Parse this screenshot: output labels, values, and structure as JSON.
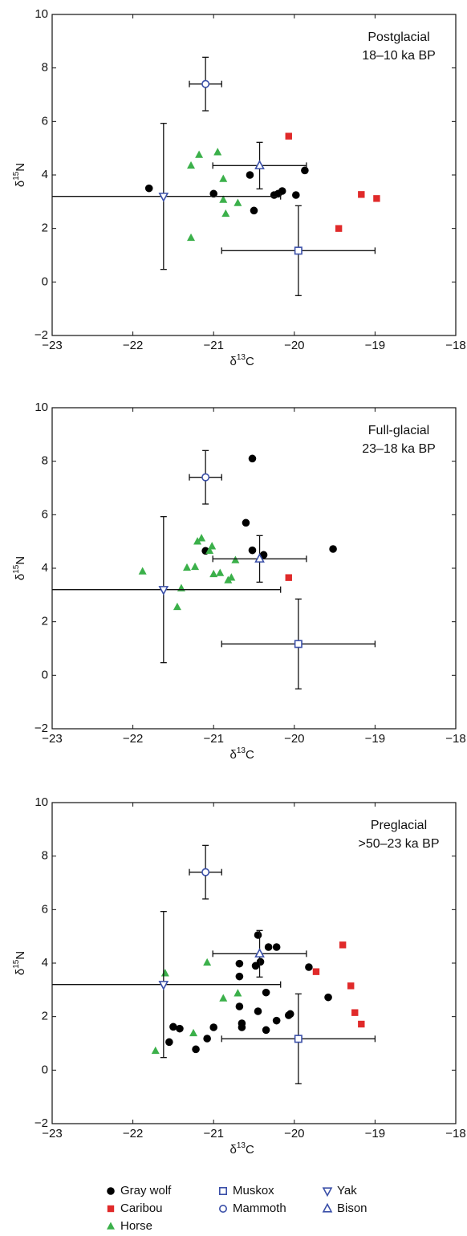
{
  "chart_data": [
    {
      "type": "scatter",
      "annotation": [
        "Postglacial",
        "18–10 ka BP"
      ],
      "xlabel": [
        "δ",
        "13",
        "C"
      ],
      "ylabel": [
        "δ",
        "15",
        "N"
      ],
      "xlim": [
        -23,
        -18
      ],
      "ylim": [
        -2,
        10
      ],
      "xticks": [
        {
          "value": -23,
          "label": "−23"
        },
        {
          "value": -22,
          "label": "−22"
        },
        {
          "value": -21,
          "label": "−21"
        },
        {
          "value": -20,
          "label": "−20"
        },
        {
          "value": -19,
          "label": "−19"
        },
        {
          "value": -18,
          "label": "−18"
        }
      ],
      "yticks": [
        {
          "value": -2,
          "label": "−2"
        },
        0,
        2,
        4,
        6,
        8,
        10
      ],
      "series": [
        {
          "name": "Gray wolf",
          "color": "#000000",
          "marker": "circle",
          "filled": true,
          "x": [
            -21.8,
            -21.0,
            -20.55,
            -20.5,
            -20.25,
            -20.2,
            -20.15,
            -19.98,
            -19.87
          ],
          "y": [
            3.5,
            3.3,
            4.0,
            2.67,
            3.25,
            3.3,
            3.4,
            3.25,
            4.17
          ]
        },
        {
          "name": "Caribou",
          "color": "#e02a2a",
          "marker": "square",
          "filled": true,
          "x": [
            -20.07,
            -19.45,
            -19.17,
            -18.98
          ],
          "y": [
            5.45,
            2.0,
            3.27,
            3.12
          ]
        },
        {
          "name": "Horse",
          "color": "#3bb04a",
          "marker": "triangle-up",
          "filled": true,
          "x": [
            -21.28,
            -21.18,
            -20.95,
            -20.88,
            -20.88,
            -20.85,
            -20.7,
            -21.28
          ],
          "y": [
            4.35,
            4.75,
            4.85,
            3.85,
            3.07,
            2.55,
            2.95,
            1.65
          ]
        },
        {
          "name": "Muskox",
          "color": "#3a4fa8",
          "marker": "square",
          "filled": false,
          "x": [
            -19.95
          ],
          "y": [
            1.17
          ],
          "xerr": [
            0.95
          ],
          "yerr": [
            1.68
          ]
        },
        {
          "name": "Mammoth",
          "color": "#3a4fa8",
          "marker": "circle",
          "filled": false,
          "x": [
            -21.1
          ],
          "y": [
            7.4
          ],
          "xerr": [
            0.2
          ],
          "yerr": [
            1.0
          ]
        },
        {
          "name": "Yak",
          "color": "#3a4fa8",
          "marker": "triangle-down",
          "filled": false,
          "x": [
            -21.62
          ],
          "y": [
            3.2
          ],
          "xerr": [
            1.45
          ],
          "yerr": [
            2.73
          ]
        },
        {
          "name": "Bison",
          "color": "#3a4fa8",
          "marker": "triangle-up",
          "filled": false,
          "x": [
            -20.43
          ],
          "y": [
            4.35
          ],
          "xerr": [
            0.58
          ],
          "yerr": [
            0.87
          ]
        }
      ]
    },
    {
      "type": "scatter",
      "annotation": [
        "Full-glacial",
        "23–18 ka BP"
      ],
      "xlabel": [
        "δ",
        "13",
        "C"
      ],
      "ylabel": [
        "δ",
        "15",
        "N"
      ],
      "xlim": [
        -23,
        -18
      ],
      "ylim": [
        -2,
        10
      ],
      "xticks": [
        {
          "value": -23,
          "label": "−23"
        },
        {
          "value": -22,
          "label": "−22"
        },
        {
          "value": -21,
          "label": "−21"
        },
        {
          "value": -20,
          "label": "−20"
        },
        {
          "value": -19,
          "label": "−19"
        },
        {
          "value": -18,
          "label": "−18"
        }
      ],
      "yticks": [
        {
          "value": -2,
          "label": "−2"
        },
        0,
        2,
        4,
        6,
        8,
        10
      ],
      "series": [
        {
          "name": "Gray wolf",
          "color": "#000000",
          "marker": "circle",
          "filled": true,
          "x": [
            -21.1,
            -20.52,
            -20.6,
            -20.52,
            -20.38,
            -19.52
          ],
          "y": [
            4.65,
            8.1,
            5.7,
            4.67,
            4.5,
            4.72
          ]
        },
        {
          "name": "Caribou",
          "color": "#e02a2a",
          "marker": "square",
          "filled": true,
          "x": [
            -20.07
          ],
          "y": [
            3.65
          ]
        },
        {
          "name": "Horse",
          "color": "#3bb04a",
          "marker": "triangle-up",
          "filled": true,
          "x": [
            -21.88,
            -21.45,
            -21.4,
            -21.33,
            -21.23,
            -21.2,
            -21.15,
            -21.05,
            -21.02,
            -21.0,
            -20.92,
            -20.82,
            -20.78,
            -20.73
          ],
          "y": [
            3.88,
            2.55,
            3.25,
            4.02,
            4.05,
            5.0,
            5.12,
            4.65,
            4.82,
            3.78,
            3.82,
            3.55,
            3.65,
            4.3
          ]
        },
        {
          "name": "Muskox",
          "color": "#3a4fa8",
          "marker": "square",
          "filled": false,
          "x": [
            -19.95
          ],
          "y": [
            1.17
          ],
          "xerr": [
            0.95
          ],
          "yerr": [
            1.68
          ]
        },
        {
          "name": "Mammoth",
          "color": "#3a4fa8",
          "marker": "circle",
          "filled": false,
          "x": [
            -21.1
          ],
          "y": [
            7.4
          ],
          "xerr": [
            0.2
          ],
          "yerr": [
            1.0
          ]
        },
        {
          "name": "Yak",
          "color": "#3a4fa8",
          "marker": "triangle-down",
          "filled": false,
          "x": [
            -21.62
          ],
          "y": [
            3.2
          ],
          "xerr": [
            1.45
          ],
          "yerr": [
            2.73
          ]
        },
        {
          "name": "Bison",
          "color": "#3a4fa8",
          "marker": "triangle-up",
          "filled": false,
          "x": [
            -20.43
          ],
          "y": [
            4.35
          ],
          "xerr": [
            0.58
          ],
          "yerr": [
            0.87
          ]
        }
      ]
    },
    {
      "type": "scatter",
      "annotation": [
        "Preglacial",
        ">50–23 ka BP"
      ],
      "xlabel": [
        "δ",
        "13",
        "C"
      ],
      "ylabel": [
        "δ",
        "15",
        "N"
      ],
      "xlim": [
        -23,
        -18
      ],
      "ylim": [
        -2,
        10
      ],
      "xticks": [
        {
          "value": -23,
          "label": "−23"
        },
        {
          "value": -22,
          "label": "−22"
        },
        {
          "value": -21,
          "label": "−21"
        },
        {
          "value": -20,
          "label": "−20"
        },
        {
          "value": -19,
          "label": "−19"
        },
        {
          "value": -18,
          "label": "−18"
        }
      ],
      "yticks": [
        {
          "value": -2,
          "label": "−2"
        },
        0,
        2,
        4,
        6,
        8,
        10
      ],
      "series": [
        {
          "name": "Gray wolf",
          "color": "#000000",
          "marker": "circle",
          "filled": true,
          "x": [
            -21.55,
            -21.5,
            -21.42,
            -21.22,
            -21.08,
            -21.0,
            -20.68,
            -20.68,
            -20.68,
            -20.65,
            -20.65,
            -20.48,
            -20.45,
            -20.42,
            -20.45,
            -20.35,
            -20.35,
            -20.32,
            -20.22,
            -20.22,
            -20.07,
            -20.05,
            -19.82,
            -19.58
          ],
          "y": [
            1.05,
            1.62,
            1.55,
            0.78,
            1.18,
            1.6,
            3.98,
            3.5,
            2.38,
            1.75,
            1.6,
            3.9,
            5.05,
            4.05,
            2.2,
            1.5,
            2.9,
            4.6,
            4.6,
            1.85,
            2.05,
            2.1,
            3.85,
            2.72
          ]
        },
        {
          "name": "Caribou",
          "color": "#e02a2a",
          "marker": "square",
          "filled": true,
          "x": [
            -19.73,
            -19.4,
            -19.3,
            -19.25,
            -19.17
          ],
          "y": [
            3.68,
            4.68,
            3.15,
            2.15,
            1.72
          ]
        },
        {
          "name": "Horse",
          "color": "#3bb04a",
          "marker": "triangle-up",
          "filled": true,
          "x": [
            -21.72,
            -21.6,
            -21.25,
            -21.08,
            -20.88,
            -20.7
          ],
          "y": [
            0.72,
            3.62,
            1.38,
            4.02,
            2.68,
            2.87
          ]
        },
        {
          "name": "Muskox",
          "color": "#3a4fa8",
          "marker": "square",
          "filled": false,
          "x": [
            -19.95
          ],
          "y": [
            1.17
          ],
          "xerr": [
            0.95
          ],
          "yerr": [
            1.68
          ]
        },
        {
          "name": "Mammoth",
          "color": "#3a4fa8",
          "marker": "circle",
          "filled": false,
          "x": [
            -21.1
          ],
          "y": [
            7.4
          ],
          "xerr": [
            0.2
          ],
          "yerr": [
            1.0
          ]
        },
        {
          "name": "Yak",
          "color": "#3a4fa8",
          "marker": "triangle-down",
          "filled": false,
          "x": [
            -21.62
          ],
          "y": [
            3.2
          ],
          "xerr": [
            1.45
          ],
          "yerr": [
            2.73
          ]
        },
        {
          "name": "Bison",
          "color": "#3a4fa8",
          "marker": "triangle-up",
          "filled": false,
          "x": [
            -20.43
          ],
          "y": [
            4.35
          ],
          "xerr": [
            0.58
          ],
          "yerr": [
            0.87
          ]
        }
      ]
    }
  ]
}
